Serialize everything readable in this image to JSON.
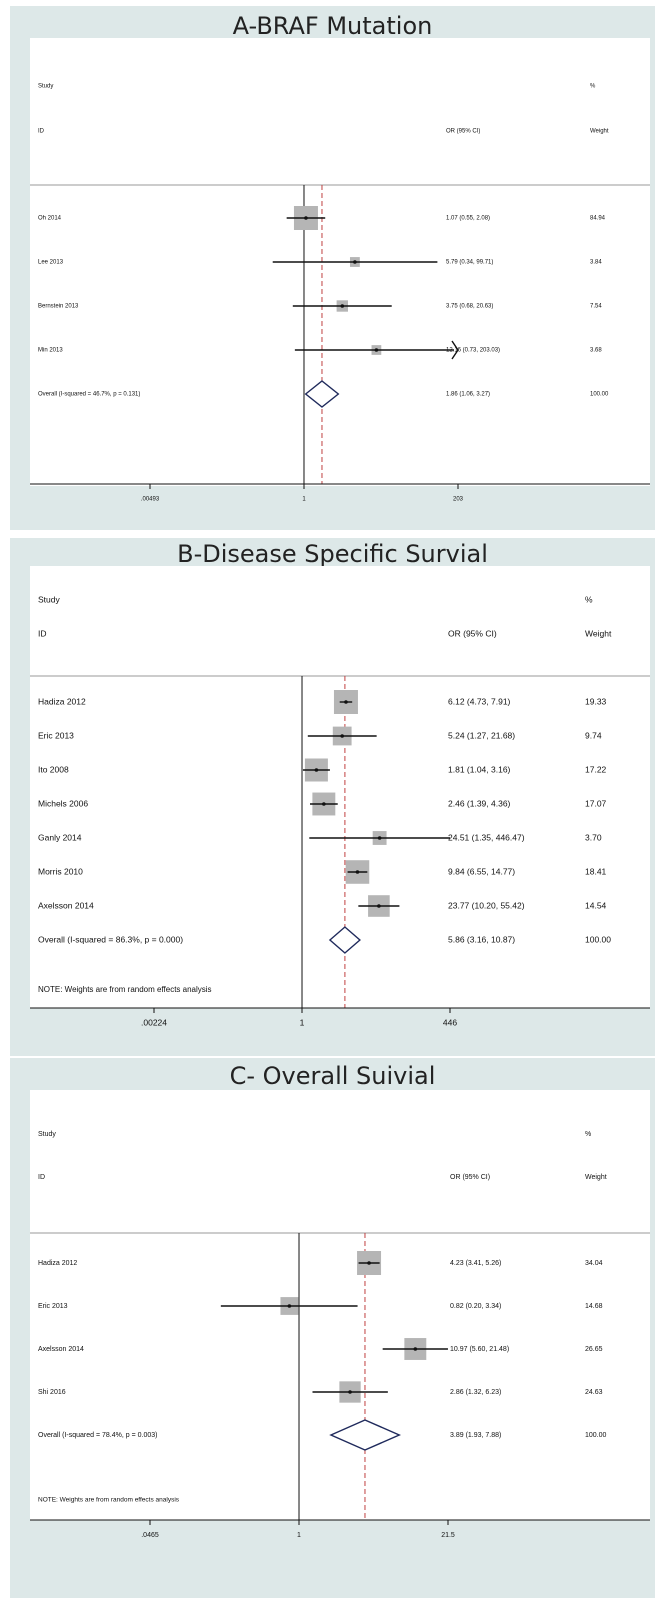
{
  "chart_data": [
    {
      "type": "forest",
      "title": "A-BRAF Mutation",
      "header": {
        "study": "Study",
        "id": "ID",
        "effect": "OR (95% CI)",
        "pct": "%",
        "weight": "Weight"
      },
      "scale": "log",
      "ticks": [
        {
          "v": 0.00493,
          "label": ".00493"
        },
        {
          "v": 1,
          "label": "1"
        },
        {
          "v": 203,
          "label": "203"
        }
      ],
      "xlim": [
        0.00493,
        203
      ],
      "overall_line": 1.86,
      "studies": [
        {
          "label": "Oh 2014",
          "or": 1.07,
          "lo": 0.55,
          "hi": 2.08,
          "ci_text": "1.07 (0.55, 2.08)",
          "weight": 84.94,
          "weight_text": "84.94"
        },
        {
          "label": "Lee 2013",
          "or": 5.79,
          "lo": 0.34,
          "hi": 99.71,
          "ci_text": "5.79 (0.34, 99.71)",
          "weight": 3.84,
          "weight_text": "3.84"
        },
        {
          "label": "Bernstein 2013",
          "or": 3.75,
          "lo": 0.68,
          "hi": 20.63,
          "ci_text": "3.75 (0.68, 20.63)",
          "weight": 7.54,
          "weight_text": "7.54"
        },
        {
          "label": "Min 2013",
          "or": 12.16,
          "lo": 0.73,
          "hi": 203.03,
          "ci_text": "12.16 (0.73, 203.03)",
          "weight": 3.68,
          "weight_text": "3.68"
        }
      ],
      "overall": {
        "label": "Overall  (I-squared = 46.7%, p = 0.131)",
        "or": 1.86,
        "lo": 1.06,
        "hi": 3.27,
        "ci_text": "1.86 (1.06, 3.27)",
        "weight_text": "100.00"
      },
      "note": ""
    },
    {
      "type": "forest",
      "title": "B-Disease Specific Survial",
      "header": {
        "study": "Study",
        "id": "ID",
        "effect": "OR (95% CI)",
        "pct": "%",
        "weight": "Weight"
      },
      "scale": "log",
      "ticks": [
        {
          "v": 0.00224,
          "label": ".00224"
        },
        {
          "v": 1,
          "label": "1"
        },
        {
          "v": 446,
          "label": "446"
        }
      ],
      "xlim": [
        0.00224,
        446
      ],
      "overall_line": 5.86,
      "studies": [
        {
          "label": "Hadiza 2012",
          "or": 6.12,
          "lo": 4.73,
          "hi": 7.91,
          "ci_text": "6.12 (4.73, 7.91)",
          "weight": 19.33,
          "weight_text": "19.33"
        },
        {
          "label": "Eric 2013",
          "or": 5.24,
          "lo": 1.27,
          "hi": 21.68,
          "ci_text": "5.24 (1.27, 21.68)",
          "weight": 9.74,
          "weight_text": "9.74"
        },
        {
          "label": "Ito 2008",
          "or": 1.81,
          "lo": 1.04,
          "hi": 3.16,
          "ci_text": "1.81 (1.04, 3.16)",
          "weight": 17.22,
          "weight_text": "17.22"
        },
        {
          "label": "Michels 2006",
          "or": 2.46,
          "lo": 1.39,
          "hi": 4.36,
          "ci_text": "2.46 (1.39, 4.36)",
          "weight": 17.07,
          "weight_text": "17.07"
        },
        {
          "label": "Ganly 2014",
          "or": 24.51,
          "lo": 1.35,
          "hi": 446.47,
          "ci_text": "24.51 (1.35, 446.47)",
          "weight": 3.7,
          "weight_text": "3.70"
        },
        {
          "label": "Morris 2010",
          "or": 9.84,
          "lo": 6.55,
          "hi": 14.77,
          "ci_text": "9.84 (6.55, 14.77)",
          "weight": 18.41,
          "weight_text": "18.41"
        },
        {
          "label": "Axelsson 2014",
          "or": 23.77,
          "lo": 10.2,
          "hi": 55.42,
          "ci_text": "23.77 (10.20, 55.42)",
          "weight": 14.54,
          "weight_text": "14.54"
        }
      ],
      "overall": {
        "label": "Overall  (I-squared = 86.3%, p = 0.000)",
        "or": 5.86,
        "lo": 3.16,
        "hi": 10.87,
        "ci_text": "5.86 (3.16, 10.87)",
        "weight_text": "100.00"
      },
      "note": "NOTE: Weights are from random effects analysis"
    },
    {
      "type": "forest",
      "title": "C- Overall Suivial",
      "header": {
        "study": "Study",
        "id": "ID",
        "effect": "OR (95% CI)",
        "pct": "%",
        "weight": "Weight"
      },
      "scale": "log",
      "ticks": [
        {
          "v": 0.0465,
          "label": ".0465"
        },
        {
          "v": 1,
          "label": "1"
        },
        {
          "v": 21.5,
          "label": "21.5"
        }
      ],
      "xlim": [
        0.0465,
        21.5
      ],
      "overall_line": 3.89,
      "studies": [
        {
          "label": "Hadiza 2012",
          "or": 4.23,
          "lo": 3.41,
          "hi": 5.26,
          "ci_text": "4.23 (3.41, 5.26)",
          "weight": 34.04,
          "weight_text": "34.04"
        },
        {
          "label": "Eric 2013",
          "or": 0.82,
          "lo": 0.2,
          "hi": 3.34,
          "ci_text": "0.82 (0.20, 3.34)",
          "weight": 14.68,
          "weight_text": "14.68"
        },
        {
          "label": "Axelsson 2014",
          "or": 10.97,
          "lo": 5.6,
          "hi": 21.48,
          "ci_text": "10.97 (5.60, 21.48)",
          "weight": 26.65,
          "weight_text": "26.65"
        },
        {
          "label": "Shi 2016",
          "or": 2.86,
          "lo": 1.32,
          "hi": 6.23,
          "ci_text": "2.86 (1.32, 6.23)",
          "weight": 24.63,
          "weight_text": "24.63"
        }
      ],
      "overall": {
        "label": "Overall  (I-squared = 78.4%, p = 0.003)",
        "or": 3.89,
        "lo": 1.93,
        "hi": 7.88,
        "ci_text": "3.89 (1.93, 7.88)",
        "weight_text": "100.00"
      },
      "note": "NOTE: Weights are from random effects analysis"
    }
  ],
  "colors": {
    "panel_bg": "#dde8e8",
    "box": "#b5b5b5",
    "diamond": "#1f2a5c",
    "ref_line": "#c04040"
  }
}
